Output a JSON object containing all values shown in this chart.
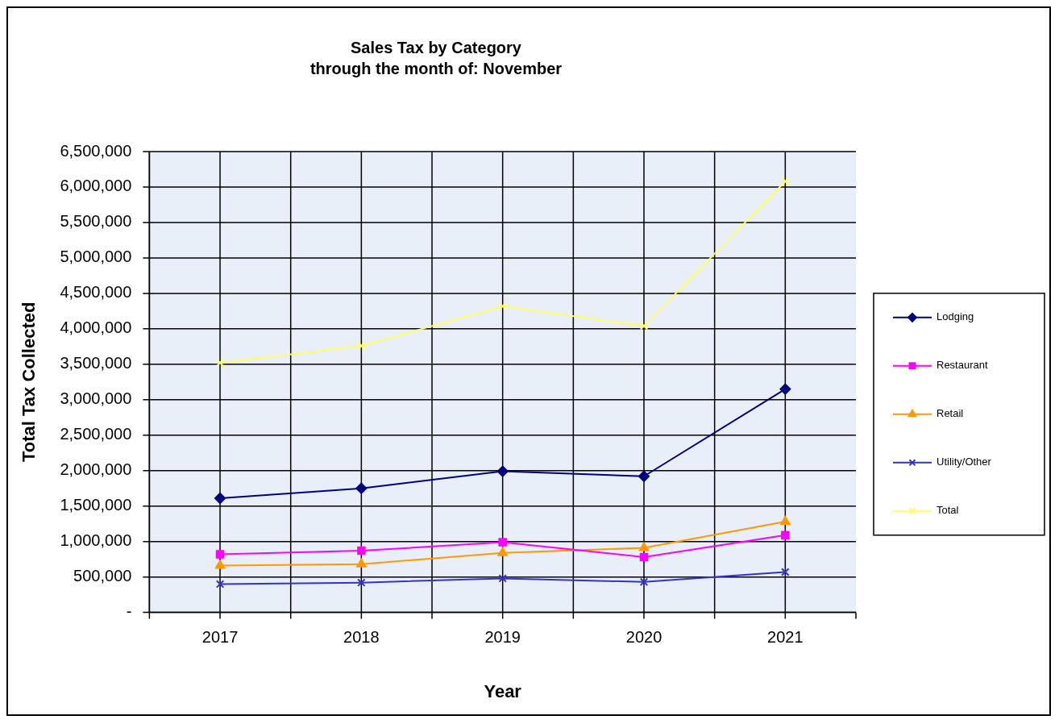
{
  "chart_data": {
    "type": "line",
    "title": "Sales Tax by Category",
    "subtitle": "through the month of: November",
    "xlabel": "Year",
    "ylabel": "Total Tax Collected",
    "categories": [
      "2017",
      "2018",
      "2019",
      "2020",
      "2021"
    ],
    "series": [
      {
        "name": "Lodging",
        "color": "#000080",
        "marker": "diamond",
        "values": [
          1610000,
          1750000,
          1990000,
          1920000,
          3150000
        ]
      },
      {
        "name": "Restaurant",
        "color": "#ff00ff",
        "marker": "square",
        "values": [
          820000,
          870000,
          990000,
          780000,
          1090000
        ]
      },
      {
        "name": "Retail",
        "color": "#ff9900",
        "marker": "triangle",
        "values": [
          660000,
          680000,
          840000,
          910000,
          1280000
        ]
      },
      {
        "name": "Utility/Other",
        "color": "#3333cc",
        "marker": "cross",
        "values": [
          400000,
          420000,
          480000,
          430000,
          570000
        ]
      },
      {
        "name": "Total",
        "color": "#ffff66",
        "marker": "cross",
        "values": [
          3520000,
          3760000,
          4320000,
          4040000,
          6080000
        ]
      }
    ],
    "ylim": [
      0,
      6500000
    ],
    "yticks": [
      {
        "value": 0,
        "label": "-"
      },
      {
        "value": 500000,
        "label": "500,000"
      },
      {
        "value": 1000000,
        "label": "1,000,000"
      },
      {
        "value": 1500000,
        "label": "1,500,000"
      },
      {
        "value": 2000000,
        "label": "2,000,000"
      },
      {
        "value": 2500000,
        "label": "2,500,000"
      },
      {
        "value": 3000000,
        "label": "3,000,000"
      },
      {
        "value": 3500000,
        "label": "3,500,000"
      },
      {
        "value": 4000000,
        "label": "4,000,000"
      },
      {
        "value": 4500000,
        "label": "4,500,000"
      },
      {
        "value": 5000000,
        "label": "5,000,000"
      },
      {
        "value": 5500000,
        "label": "5,500,000"
      },
      {
        "value": 6000000,
        "label": "6,000,000"
      },
      {
        "value": 6500000,
        "label": "6,500,000"
      }
    ],
    "grid": true,
    "legend": "right"
  }
}
